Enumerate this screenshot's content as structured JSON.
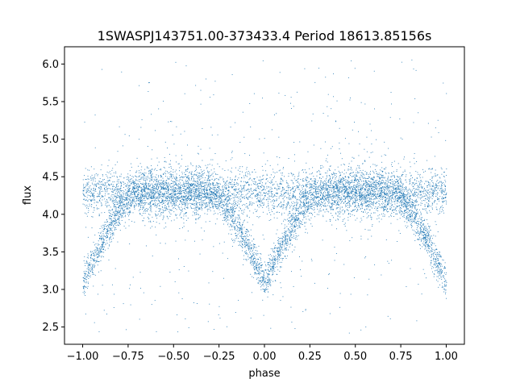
{
  "chart_data": {
    "type": "scatter",
    "title": "1SWASPJ143751.00-373433.4 Period 18613.85156s",
    "xlabel": "phase",
    "ylabel": "flux",
    "xlim": [
      -1.1,
      1.1
    ],
    "ylim": [
      2.27,
      6.23
    ],
    "x_ticks": [
      -1.0,
      -0.75,
      -0.5,
      -0.25,
      0.0,
      0.25,
      0.5,
      0.75,
      1.0
    ],
    "x_tick_labels": [
      "−1.00",
      "−0.75",
      "−0.50",
      "−0.25",
      "0.00",
      "0.25",
      "0.50",
      "0.75",
      "1.00"
    ],
    "y_ticks": [
      2.5,
      3.0,
      3.5,
      4.0,
      4.5,
      5.0,
      5.5,
      6.0
    ],
    "y_tick_labels": [
      "2.5",
      "3.0",
      "3.5",
      "4.0",
      "4.5",
      "5.0",
      "5.5",
      "6.0"
    ],
    "grid": false,
    "legend": "none",
    "marker_color": "#1f77b4",
    "series": [
      {
        "phase_range": [
          -1.0,
          1.0
        ],
        "baseline_flux": 4.3,
        "baseline_scatter": 0.15,
        "primary_eclipse": {
          "phases": [
            -1.0,
            0.0,
            1.0
          ],
          "min_flux": 3.1,
          "half_width": 0.3
        },
        "outlier_range": [
          2.4,
          6.1
        ]
      }
    ]
  }
}
